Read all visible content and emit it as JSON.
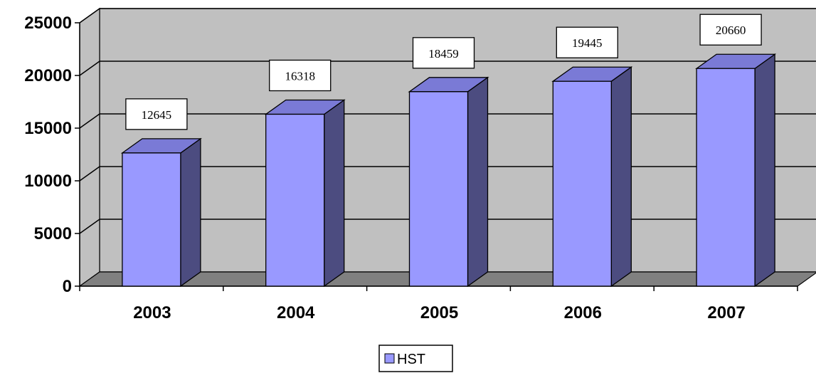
{
  "chart_data": {
    "type": "bar",
    "categories": [
      "2003",
      "2004",
      "2005",
      "2006",
      "2007"
    ],
    "series": [
      {
        "name": "HST",
        "values": [
          12645,
          16318,
          18459,
          19445,
          20660
        ]
      }
    ],
    "data_labels": [
      "12645",
      "16318",
      "18459",
      "19445",
      "20660"
    ],
    "ylim": [
      0,
      25000
    ],
    "yticks": [
      "0",
      "5000",
      "10000",
      "15000",
      "20000",
      "25000"
    ],
    "grid": true,
    "three_d": true,
    "legend_position": "bottom",
    "colors": {
      "bar_front": "#9999ff",
      "bar_top": "#7a7ad6",
      "bar_side": "#4c4c80",
      "wall": "#c0c0c0",
      "floor": "#808080",
      "gridline": "#000000"
    }
  }
}
